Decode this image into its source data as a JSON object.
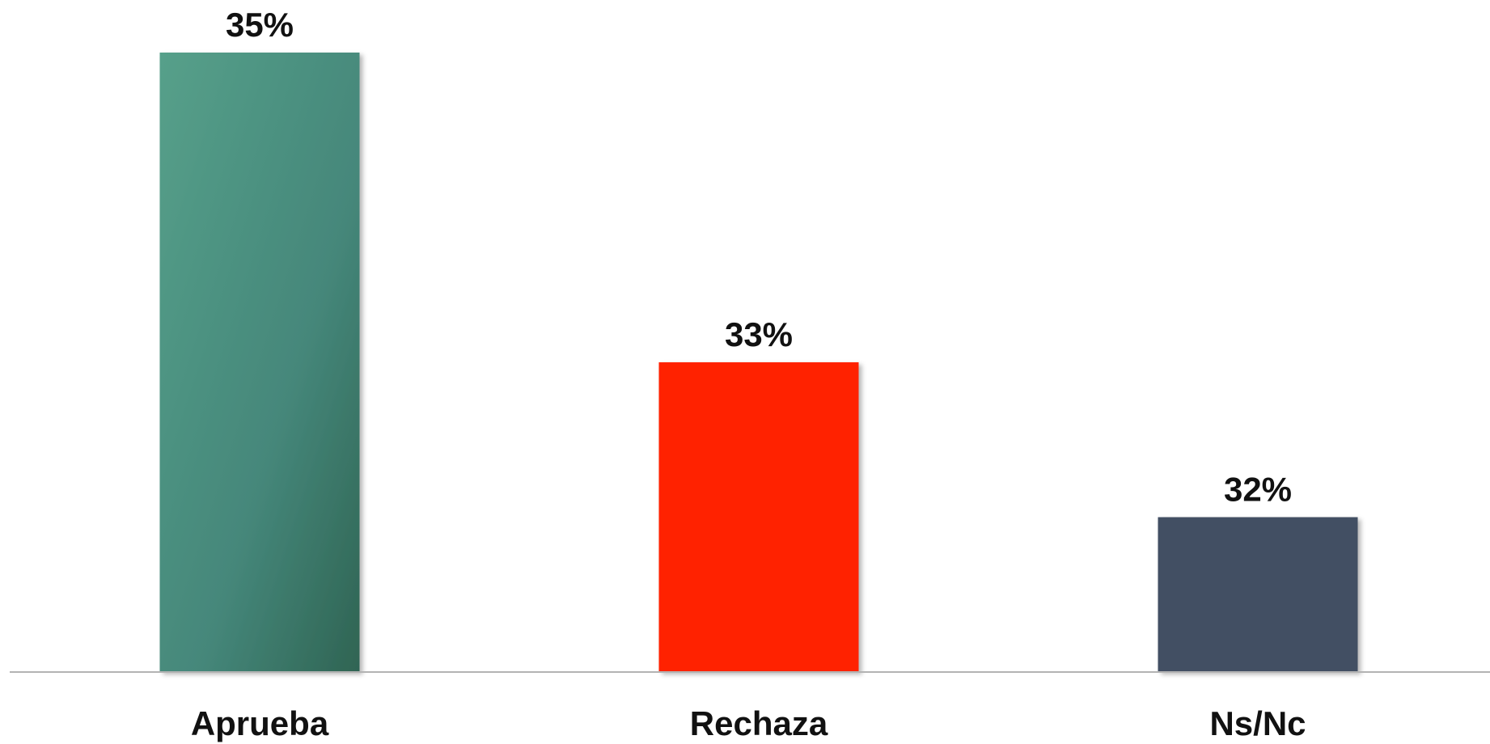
{
  "chart_data": {
    "type": "bar",
    "categories": [
      "Aprueba",
      "Rechaza",
      "Ns/Nc"
    ],
    "values": [
      35,
      33,
      32
    ],
    "data_labels": [
      "35%",
      "33%",
      "32%"
    ],
    "colors": [
      "#4a8f7c",
      "#ff2400",
      "#435063"
    ],
    "ylim": [
      31,
      35
    ],
    "grid": false,
    "legend": "none"
  }
}
